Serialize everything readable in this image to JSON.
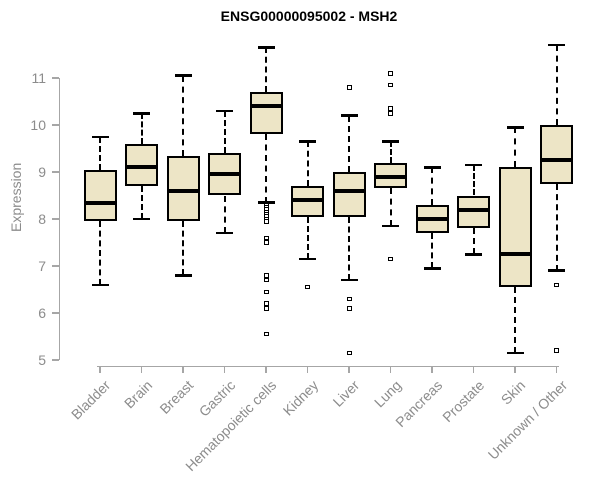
{
  "chart_data": {
    "type": "boxplot",
    "title": "ENSG00000095002 - MSH2",
    "xlabel": "",
    "ylabel": "Expression",
    "ylim": [
      5,
      11.8
    ],
    "yticks": [
      5,
      6,
      7,
      8,
      9,
      10,
      11
    ],
    "grid": false,
    "legend": false,
    "colors": {
      "box_fill": "#EDE5C6",
      "box_stroke": "#000000",
      "axis_line": "#A6A6A6",
      "axis_text": "#8C8C8C",
      "title_text": "#000000"
    },
    "categories": [
      "Bladder",
      "Brain",
      "Breast",
      "Gastric",
      "Hematopoietic cells",
      "Kidney",
      "Liver",
      "Lung",
      "Pancreas",
      "Prostate",
      "Skin",
      "Unknown / Other"
    ],
    "boxes": [
      {
        "category": "Bladder",
        "whisker_low": 6.6,
        "q1": 7.95,
        "median": 8.35,
        "q3": 9.05,
        "whisker_high": 9.75,
        "outliers": []
      },
      {
        "category": "Brain",
        "whisker_low": 8.0,
        "q1": 8.7,
        "median": 9.1,
        "q3": 9.6,
        "whisker_high": 10.25,
        "outliers": []
      },
      {
        "category": "Breast",
        "whisker_low": 6.8,
        "q1": 7.95,
        "median": 8.6,
        "q3": 9.35,
        "whisker_high": 11.05,
        "outliers": []
      },
      {
        "category": "Gastric",
        "whisker_low": 7.7,
        "q1": 8.5,
        "median": 8.95,
        "q3": 9.4,
        "whisker_high": 10.3,
        "outliers": []
      },
      {
        "category": "Hematopoietic cells",
        "whisker_low": 8.35,
        "q1": 9.8,
        "median": 10.4,
        "q3": 10.7,
        "whisker_high": 11.65,
        "outliers": [
          8.3,
          8.25,
          8.2,
          8.15,
          8.1,
          8.05,
          8.0,
          7.95,
          7.6,
          7.5,
          6.8,
          6.7,
          6.45,
          6.2,
          6.1,
          5.55
        ]
      },
      {
        "category": "Kidney",
        "whisker_low": 7.15,
        "q1": 8.05,
        "median": 8.4,
        "q3": 8.7,
        "whisker_high": 9.65,
        "outliers": [
          6.55
        ]
      },
      {
        "category": "Liver",
        "whisker_low": 6.7,
        "q1": 8.05,
        "median": 8.6,
        "q3": 9.0,
        "whisker_high": 10.2,
        "outliers": [
          10.8,
          6.3,
          6.1,
          5.15
        ]
      },
      {
        "category": "Lung",
        "whisker_low": 7.85,
        "q1": 8.65,
        "median": 8.9,
        "q3": 9.2,
        "whisker_high": 9.65,
        "outliers": [
          11.1,
          10.85,
          10.35,
          10.25,
          7.15
        ]
      },
      {
        "category": "Pancreas",
        "whisker_low": 6.95,
        "q1": 7.7,
        "median": 8.0,
        "q3": 8.3,
        "whisker_high": 9.1,
        "outliers": []
      },
      {
        "category": "Prostate",
        "whisker_low": 7.25,
        "q1": 7.8,
        "median": 8.2,
        "q3": 8.5,
        "whisker_high": 9.15,
        "outliers": []
      },
      {
        "category": "Skin",
        "whisker_low": 5.15,
        "q1": 6.55,
        "median": 7.25,
        "q3": 9.1,
        "whisker_high": 9.95,
        "outliers": []
      },
      {
        "category": "Unknown / Other",
        "whisker_low": 6.9,
        "q1": 8.75,
        "median": 9.25,
        "q3": 10.0,
        "whisker_high": 11.7,
        "outliers": [
          6.6,
          5.2
        ]
      }
    ]
  }
}
